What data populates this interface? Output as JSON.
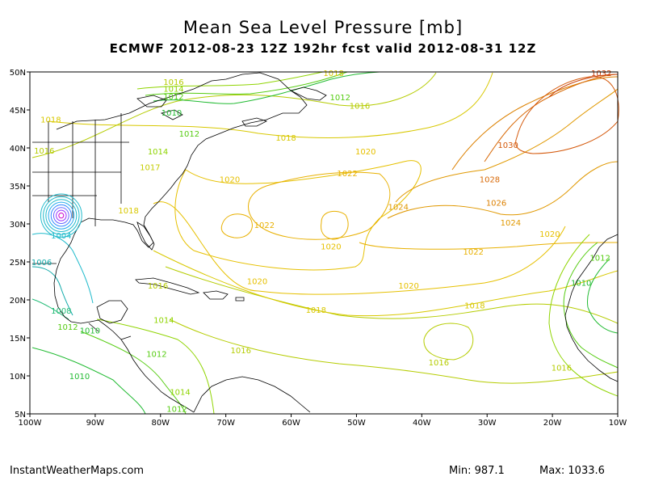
{
  "title": "Mean Sea Level Pressure [mb]",
  "subtitle": "ECMWF 2012-08-23 12Z 192hr fcst valid 2012-08-31 12Z",
  "footer": {
    "site": "InstantWeatherMaps.com",
    "min_label": "Min:",
    "min_value": "987.1",
    "max_label": "Max:",
    "max_value": "1033.6"
  },
  "axes": {
    "lon_labels": [
      "100W",
      "90W",
      "80W",
      "70W",
      "60W",
      "50W",
      "40W",
      "30W",
      "20W",
      "10W"
    ],
    "lat_labels": [
      "50N",
      "45N",
      "40N",
      "35N",
      "30N",
      "25N",
      "20N",
      "15N",
      "10N",
      "5N"
    ],
    "lon_range": [
      -100,
      -10
    ],
    "lat_range": [
      5,
      50
    ]
  },
  "chart_data": {
    "type": "contour",
    "field": "Mean Sea Level Pressure",
    "units": "mb",
    "min": 987.1,
    "max": 1033.6,
    "contour_labels": [
      {
        "text": "1016",
        "lon": -78,
        "lat": 48.7,
        "color": "#b5cc00"
      },
      {
        "text": "1014",
        "lon": -78,
        "lat": 47.8,
        "color": "#8fd400"
      },
      {
        "text": "1012",
        "lon": -78,
        "lat": 46.8,
        "color": "#55cc11"
      },
      {
        "text": "1012",
        "lon": -52.5,
        "lat": 46.7,
        "color": "#55cc11"
      },
      {
        "text": "1016",
        "lon": -49.5,
        "lat": 45.6,
        "color": "#b5cc00"
      },
      {
        "text": "1010",
        "lon": -78.3,
        "lat": 44.7,
        "color": "#22bb33"
      },
      {
        "text": "1018",
        "lon": -96.8,
        "lat": 43.8,
        "color": "#d8c800"
      },
      {
        "text": "1012",
        "lon": -75.6,
        "lat": 41.9,
        "color": "#55cc11"
      },
      {
        "text": "1018",
        "lon": -60.8,
        "lat": 41.4,
        "color": "#d8c800"
      },
      {
        "text": "1016",
        "lon": -97.8,
        "lat": 39.7,
        "color": "#b5cc00"
      },
      {
        "text": "1014",
        "lon": -80.4,
        "lat": 39.6,
        "color": "#8fd400"
      },
      {
        "text": "1020",
        "lon": -48.6,
        "lat": 39.6,
        "color": "#e6c000"
      },
      {
        "text": "1030",
        "lon": -26.8,
        "lat": 40.4,
        "color": "#d4580a"
      },
      {
        "text": "1032",
        "lon": -12.5,
        "lat": 49.9,
        "color": "#c8400a"
      },
      {
        "text": "1018",
        "lon": -53.5,
        "lat": 49.9,
        "color": "#d8c800"
      },
      {
        "text": "1017",
        "lon": -81.6,
        "lat": 37.5,
        "color": "#c4cc00"
      },
      {
        "text": "1022",
        "lon": -51.4,
        "lat": 36.7,
        "color": "#e8b000"
      },
      {
        "text": "1020",
        "lon": -69.4,
        "lat": 35.9,
        "color": "#e6c000"
      },
      {
        "text": "1028",
        "lon": -29.6,
        "lat": 35.9,
        "color": "#d86a08"
      },
      {
        "text": "1026",
        "lon": -28.6,
        "lat": 32.8,
        "color": "#dc8000"
      },
      {
        "text": "1024",
        "lon": -43.6,
        "lat": 32.3,
        "color": "#e09800"
      },
      {
        "text": "1018",
        "lon": -84.9,
        "lat": 31.8,
        "color": "#d8c800"
      },
      {
        "text": "1024",
        "lon": -26.4,
        "lat": 30.2,
        "color": "#e09800"
      },
      {
        "text": "1022",
        "lon": -64.1,
        "lat": 29.9,
        "color": "#e8b000"
      },
      {
        "text": "1004",
        "lon": -95.2,
        "lat": 28.5,
        "color": "#22bbcc"
      },
      {
        "text": "1020",
        "lon": -20.4,
        "lat": 28.7,
        "color": "#e6c000"
      },
      {
        "text": "1020",
        "lon": -53.9,
        "lat": 27.1,
        "color": "#e6c000"
      },
      {
        "text": "1022",
        "lon": -32.1,
        "lat": 26.4,
        "color": "#e8b000"
      },
      {
        "text": "1012",
        "lon": -12.7,
        "lat": 25.6,
        "color": "#55cc11"
      },
      {
        "text": "1006",
        "lon": -98.2,
        "lat": 25.0,
        "color": "#11aaaa"
      },
      {
        "text": "1010",
        "lon": -15.6,
        "lat": 22.3,
        "color": "#22bb33"
      },
      {
        "text": "1020",
        "lon": -65.2,
        "lat": 22.5,
        "color": "#e6c000"
      },
      {
        "text": "1020",
        "lon": -42.0,
        "lat": 21.9,
        "color": "#e6c000"
      },
      {
        "text": "1016",
        "lon": -80.4,
        "lat": 21.9,
        "color": "#b5cc00"
      },
      {
        "text": "1018",
        "lon": -31.9,
        "lat": 19.3,
        "color": "#d8c800"
      },
      {
        "text": "1018",
        "lon": -56.2,
        "lat": 18.7,
        "color": "#d8c800"
      },
      {
        "text": "1008",
        "lon": -95.2,
        "lat": 18.6,
        "color": "#22bb77"
      },
      {
        "text": "1014",
        "lon": -79.5,
        "lat": 17.4,
        "color": "#8fd400"
      },
      {
        "text": "1012",
        "lon": -94.2,
        "lat": 16.5,
        "color": "#55cc11"
      },
      {
        "text": "1010",
        "lon": -90.8,
        "lat": 16.0,
        "color": "#22bb33"
      },
      {
        "text": "1016",
        "lon": -67.7,
        "lat": 13.4,
        "color": "#b5cc00"
      },
      {
        "text": "1012",
        "lon": -80.6,
        "lat": 12.9,
        "color": "#55cc11"
      },
      {
        "text": "1016",
        "lon": -37.4,
        "lat": 11.8,
        "color": "#b5cc00"
      },
      {
        "text": "1016",
        "lon": -18.6,
        "lat": 11.1,
        "color": "#b5cc00"
      },
      {
        "text": "1010",
        "lon": -92.4,
        "lat": 10.0,
        "color": "#22bb33"
      },
      {
        "text": "1014",
        "lon": -77.0,
        "lat": 7.9,
        "color": "#8fd400"
      },
      {
        "text": "1012",
        "lon": -77.5,
        "lat": 5.7,
        "color": "#55cc11"
      }
    ],
    "low_center": {
      "lon": -95.2,
      "lat": 31.1,
      "color": "#cc00cc"
    }
  },
  "colors": {
    "border": "#000000",
    "land_outline": "#000000",
    "low_pressure": "#22bbcc",
    "mid_pressure": "#e6c000",
    "high_pressure": "#d4580a"
  }
}
